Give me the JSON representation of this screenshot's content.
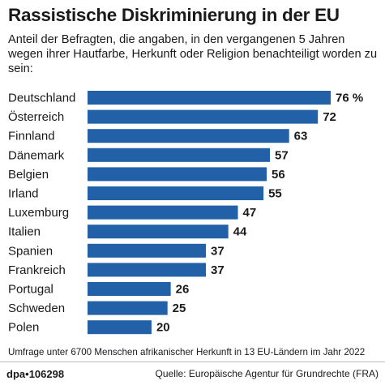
{
  "header": {
    "title": "Rassistische Diskriminierung in der EU",
    "subtitle": "Anteil der Befragten, die angaben, in den vergangenen 5 Jahren wegen ihrer Hautfarbe, Herkunft oder Religion benachteiligt worden zu sein:"
  },
  "chart_data": {
    "type": "bar",
    "orientation": "horizontal",
    "categories": [
      "Deutschland",
      "Österreich",
      "Finnland",
      "Dänemark",
      "Belgien",
      "Irland",
      "Luxemburg",
      "Italien",
      "Spanien",
      "Frankreich",
      "Portugal",
      "Schweden",
      "Polen"
    ],
    "values": [
      76,
      72,
      63,
      57,
      56,
      55,
      47,
      44,
      37,
      37,
      26,
      25,
      20
    ],
    "value_labels": [
      "76 %",
      "72",
      "63",
      "57",
      "56",
      "55",
      "47",
      "44",
      "37",
      "37",
      "26",
      "25",
      "20"
    ],
    "xlim": [
      0,
      76
    ],
    "grid": false,
    "bar_color": "#2261a8"
  },
  "footer": {
    "note": "Umfrage unter 6700 Menschen afrikanischer Herkunft in 13 EU-Ländern im Jahr 2022",
    "brand": "dpa",
    "brand_sep": "•",
    "id": "106298",
    "source": "Quelle: Europäische Agentur für Grundrechte (FRA)"
  }
}
